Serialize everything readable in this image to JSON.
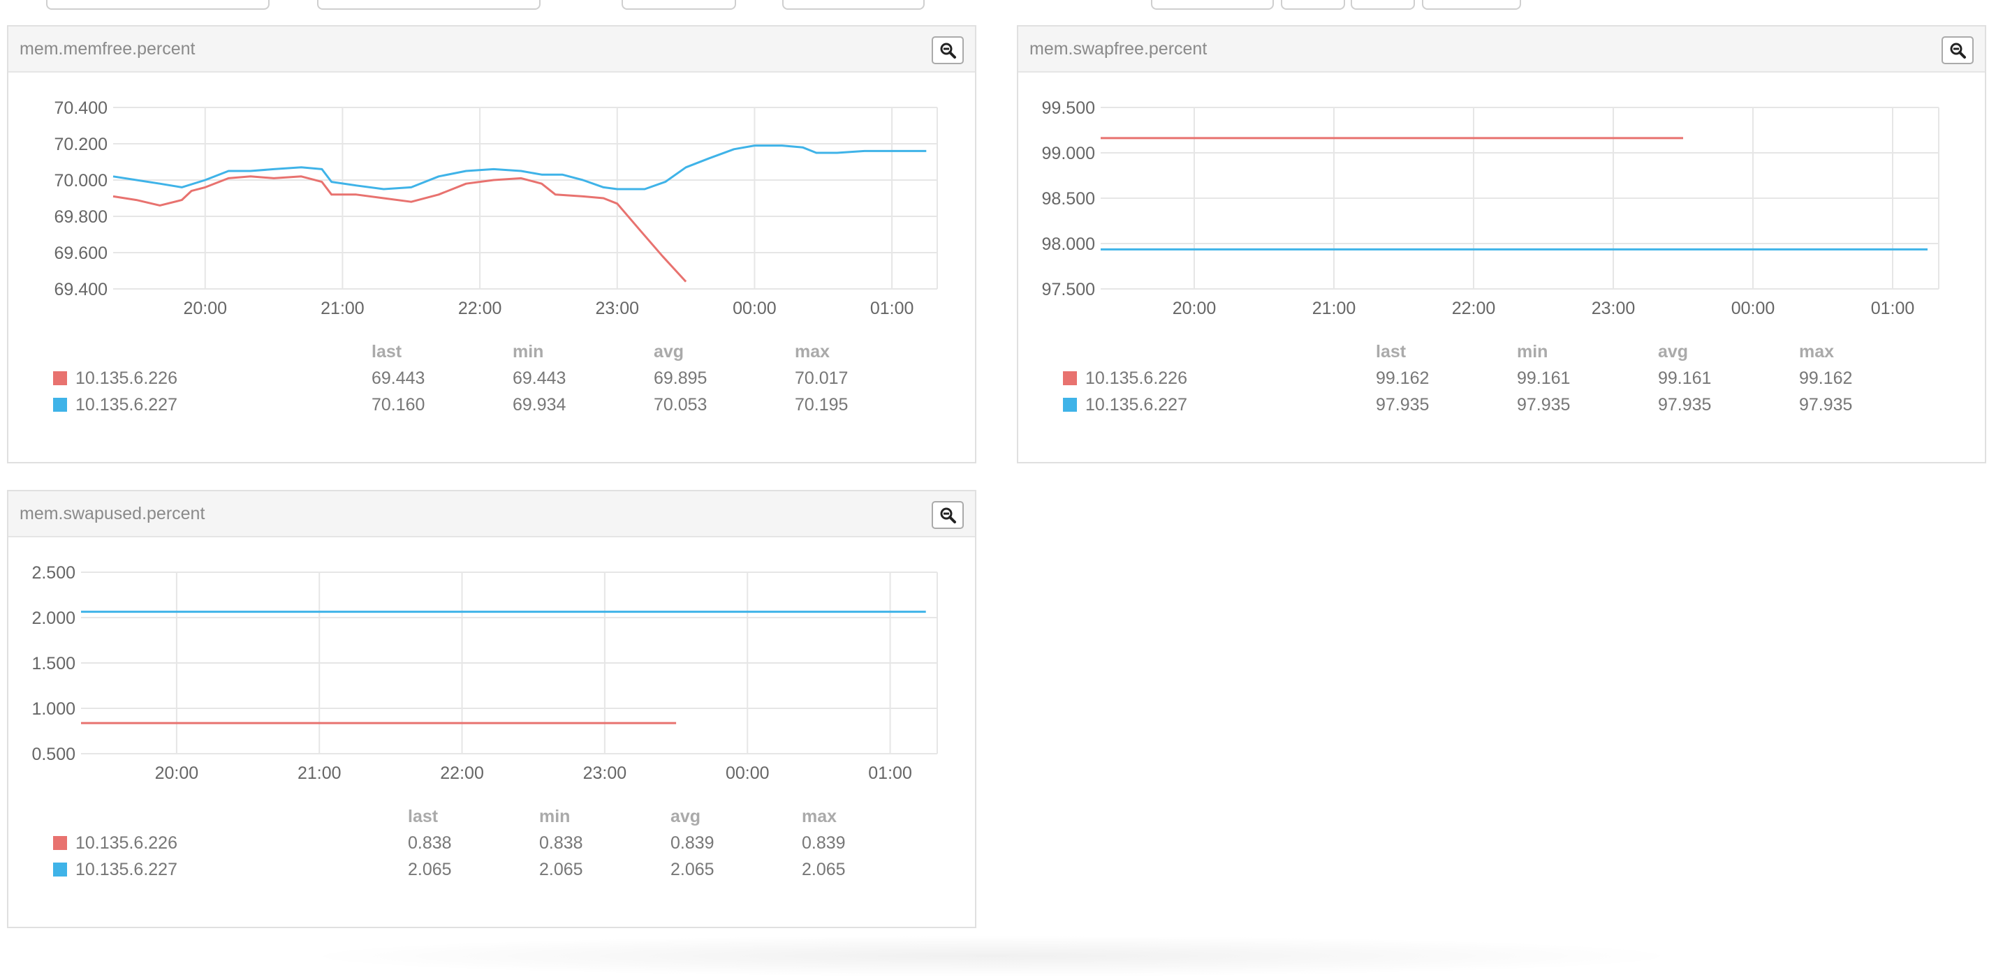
{
  "panels": [
    {
      "id": "memfree",
      "title": "mem.memfree.percent",
      "zoom_icon": "zoom-out-icon",
      "x_ticks": [
        "20:00",
        "21:00",
        "22:00",
        "23:00",
        "00:00",
        "01:00"
      ],
      "y_ticks": [
        "70.400",
        "70.200",
        "70.000",
        "69.800",
        "69.600",
        "69.400"
      ],
      "y_range": [
        69.4,
        70.4
      ],
      "legend_headers": [
        "last",
        "min",
        "avg",
        "max"
      ],
      "series": [
        {
          "name": "10.135.6.226",
          "color": "#e8726f",
          "stats": [
            "69.443",
            "69.443",
            "69.895",
            "70.017"
          ],
          "points": [
            [
              19.33,
              69.91
            ],
            [
              19.5,
              69.89
            ],
            [
              19.67,
              69.86
            ],
            [
              19.83,
              69.89
            ],
            [
              19.9,
              69.94
            ],
            [
              20.0,
              69.96
            ],
            [
              20.17,
              70.01
            ],
            [
              20.33,
              70.02
            ],
            [
              20.5,
              70.01
            ],
            [
              20.7,
              70.02
            ],
            [
              20.85,
              69.99
            ],
            [
              20.92,
              69.92
            ],
            [
              21.1,
              69.92
            ],
            [
              21.3,
              69.9
            ],
            [
              21.5,
              69.88
            ],
            [
              21.7,
              69.92
            ],
            [
              21.9,
              69.98
            ],
            [
              22.1,
              70.0
            ],
            [
              22.3,
              70.01
            ],
            [
              22.45,
              69.98
            ],
            [
              22.55,
              69.92
            ],
            [
              22.75,
              69.91
            ],
            [
              22.9,
              69.9
            ],
            [
              23.0,
              69.87
            ],
            [
              23.17,
              69.72
            ],
            [
              23.33,
              69.58
            ],
            [
              23.5,
              69.44
            ]
          ]
        },
        {
          "name": "10.135.6.227",
          "color": "#3fb3e8",
          "stats": [
            "70.160",
            "69.934",
            "70.053",
            "70.195"
          ],
          "points": [
            [
              19.33,
              70.02
            ],
            [
              19.5,
              70.0
            ],
            [
              19.67,
              69.98
            ],
            [
              19.83,
              69.96
            ],
            [
              20.0,
              70.0
            ],
            [
              20.17,
              70.05
            ],
            [
              20.33,
              70.05
            ],
            [
              20.5,
              70.06
            ],
            [
              20.7,
              70.07
            ],
            [
              20.85,
              70.06
            ],
            [
              20.92,
              69.99
            ],
            [
              21.1,
              69.97
            ],
            [
              21.3,
              69.95
            ],
            [
              21.5,
              69.96
            ],
            [
              21.7,
              70.02
            ],
            [
              21.9,
              70.05
            ],
            [
              22.1,
              70.06
            ],
            [
              22.3,
              70.05
            ],
            [
              22.45,
              70.03
            ],
            [
              22.6,
              70.03
            ],
            [
              22.75,
              70.0
            ],
            [
              22.9,
              69.96
            ],
            [
              23.0,
              69.95
            ],
            [
              23.2,
              69.95
            ],
            [
              23.35,
              69.99
            ],
            [
              23.5,
              70.07
            ],
            [
              23.67,
              70.12
            ],
            [
              23.85,
              70.17
            ],
            [
              24.0,
              70.19
            ],
            [
              24.2,
              70.19
            ],
            [
              24.35,
              70.18
            ],
            [
              24.45,
              70.15
            ],
            [
              24.6,
              70.15
            ],
            [
              24.8,
              70.16
            ],
            [
              25.0,
              70.16
            ],
            [
              25.25,
              70.16
            ]
          ]
        }
      ]
    },
    {
      "id": "swapfree",
      "title": "mem.swapfree.percent",
      "zoom_icon": "zoom-out-icon",
      "x_ticks": [
        "20:00",
        "21:00",
        "22:00",
        "23:00",
        "00:00",
        "01:00"
      ],
      "y_ticks": [
        "99.500",
        "99.000",
        "98.500",
        "98.000",
        "97.500"
      ],
      "y_range": [
        97.5,
        99.5
      ],
      "legend_headers": [
        "last",
        "min",
        "avg",
        "max"
      ],
      "series": [
        {
          "name": "10.135.6.226",
          "color": "#e8726f",
          "stats": [
            "99.162",
            "99.161",
            "99.161",
            "99.162"
          ],
          "points": [
            [
              19.33,
              99.162
            ],
            [
              23.5,
              99.162
            ]
          ]
        },
        {
          "name": "10.135.6.227",
          "color": "#3fb3e8",
          "stats": [
            "97.935",
            "97.935",
            "97.935",
            "97.935"
          ],
          "points": [
            [
              19.33,
              97.935
            ],
            [
              25.25,
              97.935
            ]
          ]
        }
      ]
    },
    {
      "id": "swapused",
      "title": "mem.swapused.percent",
      "zoom_icon": "zoom-out-icon",
      "x_ticks": [
        "20:00",
        "21:00",
        "22:00",
        "23:00",
        "00:00",
        "01:00"
      ],
      "y_ticks": [
        "2.500",
        "2.000",
        "1.500",
        "1.000",
        "0.500"
      ],
      "y_range": [
        0.5,
        2.5
      ],
      "legend_headers": [
        "last",
        "min",
        "avg",
        "max"
      ],
      "series": [
        {
          "name": "10.135.6.226",
          "color": "#e8726f",
          "stats": [
            "0.838",
            "0.838",
            "0.839",
            "0.839"
          ],
          "points": [
            [
              19.33,
              0.838
            ],
            [
              23.5,
              0.838
            ]
          ]
        },
        {
          "name": "10.135.6.227",
          "color": "#3fb3e8",
          "stats": [
            "2.065",
            "2.065",
            "2.065",
            "2.065"
          ],
          "points": [
            [
              19.33,
              2.065
            ],
            [
              25.25,
              2.065
            ]
          ]
        }
      ]
    }
  ],
  "chart_data": [
    {
      "type": "line",
      "title": "mem.memfree.percent",
      "x": [
        "20:00",
        "21:00",
        "22:00",
        "23:00",
        "00:00",
        "01:00"
      ],
      "ylim": [
        69.4,
        70.4
      ],
      "grid": true,
      "series": [
        {
          "name": "10.135.6.226",
          "last": 69.443,
          "min": 69.443,
          "avg": 69.895,
          "max": 70.017
        },
        {
          "name": "10.135.6.227",
          "last": 70.16,
          "min": 69.934,
          "avg": 70.053,
          "max": 70.195
        }
      ]
    },
    {
      "type": "line",
      "title": "mem.swapfree.percent",
      "x": [
        "20:00",
        "21:00",
        "22:00",
        "23:00",
        "00:00",
        "01:00"
      ],
      "ylim": [
        97.5,
        99.5
      ],
      "grid": true,
      "series": [
        {
          "name": "10.135.6.226",
          "last": 99.162,
          "min": 99.161,
          "avg": 99.161,
          "max": 99.162
        },
        {
          "name": "10.135.6.227",
          "last": 97.935,
          "min": 97.935,
          "avg": 97.935,
          "max": 97.935
        }
      ]
    },
    {
      "type": "line",
      "title": "mem.swapused.percent",
      "x": [
        "20:00",
        "21:00",
        "22:00",
        "23:00",
        "00:00",
        "01:00"
      ],
      "ylim": [
        0.5,
        2.5
      ],
      "grid": true,
      "series": [
        {
          "name": "10.135.6.226",
          "last": 0.838,
          "min": 0.838,
          "avg": 0.839,
          "max": 0.839
        },
        {
          "name": "10.135.6.227",
          "last": 2.065,
          "min": 2.065,
          "avg": 2.065,
          "max": 2.065
        }
      ]
    }
  ]
}
